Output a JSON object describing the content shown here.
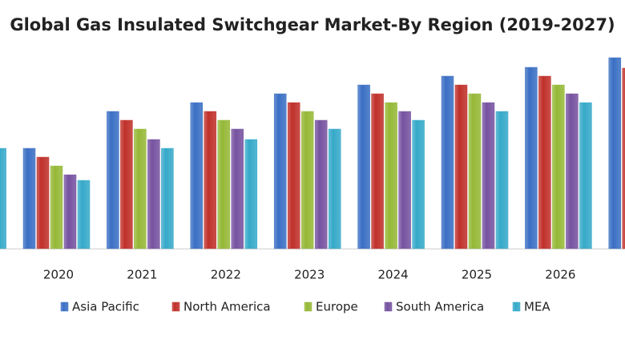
{
  "chart_data": {
    "type": "bar",
    "title": "Global Gas Insulated Switchgear Market-By Region (2019-2027)",
    "categories": [
      null,
      "2020",
      "2021",
      "2022",
      "2023",
      "2024",
      "2025",
      "2026",
      null
    ],
    "series": [
      {
        "name": "Asia Pacific",
        "color": "#3a6fc4",
        "values": [
          null,
          125,
          171,
          182,
          193,
          204,
          215,
          226,
          238
        ]
      },
      {
        "name": "North America",
        "color": "#c0302a",
        "values": [
          null,
          114,
          160,
          171,
          182,
          193,
          204,
          215,
          225
        ]
      },
      {
        "name": "Europe",
        "color": "#95b836",
        "values": [
          null,
          103,
          149,
          160,
          171,
          182,
          193,
          204,
          null
        ]
      },
      {
        "name": "South America",
        "color": "#7652a0",
        "values": [
          null,
          92,
          136,
          149,
          160,
          171,
          182,
          193,
          null
        ]
      },
      {
        "name": "MEA",
        "color": "#35a9c9",
        "values": [
          125,
          85,
          125,
          136,
          149,
          160,
          171,
          182,
          null
        ]
      }
    ],
    "ylim": [
      0,
      310
    ]
  }
}
